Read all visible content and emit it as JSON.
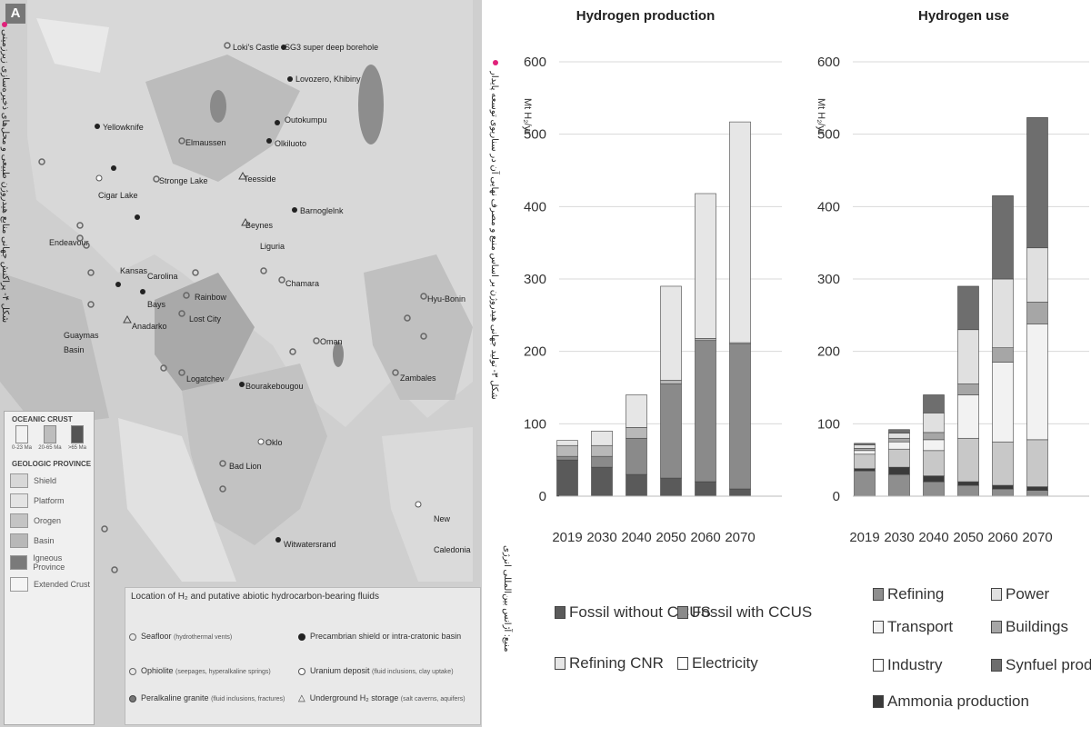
{
  "map": {
    "badge": "A",
    "sites": [
      {
        "label": "Loki's Castle"
      },
      {
        "label": "SG3 super deep borehole"
      },
      {
        "label": "Lovozero, Khibiny"
      },
      {
        "label": "Yellowknife"
      },
      {
        "label": "Outokumpu"
      },
      {
        "label": "Olkiluoto"
      },
      {
        "label": "Elmaussen"
      },
      {
        "label": "Cigar Lake"
      },
      {
        "label": "Stronge Lake"
      },
      {
        "label": "Teesside"
      },
      {
        "label": "Barnoglelnk"
      },
      {
        "label": "Beynes"
      },
      {
        "label": "Liguria"
      },
      {
        "label": "Endeavour"
      },
      {
        "label": "Kansas"
      },
      {
        "label": "Carolina"
      },
      {
        "label": "Bays"
      },
      {
        "label": "Rainbow"
      },
      {
        "label": "Chamara"
      },
      {
        "label": "Lost City"
      },
      {
        "label": "Guaymas"
      },
      {
        "label": "Basin"
      },
      {
        "label": "Anadarko"
      },
      {
        "label": "Oman"
      },
      {
        "label": "Hyu-Bonin"
      },
      {
        "label": "Logatchev"
      },
      {
        "label": "Bourakebougou"
      },
      {
        "label": "Zambales"
      },
      {
        "label": "Oklo"
      },
      {
        "label": "Bad Lion"
      },
      {
        "label": "Witwatersrand"
      },
      {
        "label": "New"
      },
      {
        "label": "Caledonia"
      }
    ],
    "crust_legend": {
      "title": "OCEANIC CRUST",
      "items": [
        {
          "label": "0-23 Ma",
          "color": "#f2f2f2"
        },
        {
          "label": "20-65 Ma",
          "color": "#bdbdbd"
        },
        {
          "label": ">65 Ma",
          "color": "#555555"
        }
      ]
    },
    "province_legend": {
      "title": "GEOLOGIC PROVINCE",
      "items": [
        {
          "label": "Shield",
          "color": "#d8d8d8"
        },
        {
          "label": "Platform",
          "color": "#e4e4e4"
        },
        {
          "label": "Orogen",
          "color": "#c4c4c4"
        },
        {
          "label": "Basin",
          "color": "#b8b8b8"
        },
        {
          "label": "Igneous Province",
          "color": "#7a7a7a"
        },
        {
          "label": "Extended Crust",
          "color": "#f4f4f4"
        }
      ]
    },
    "location_legend": {
      "title": "Location of H₂ and putative abiotic hydrocarbon-bearing fluids",
      "items": [
        {
          "label": "Seafloor",
          "note": "(hydrothermal vents)",
          "marker": "ring-grey"
        },
        {
          "label": "Precambrian shield or intra-cratonic basin",
          "note": "",
          "marker": "filled-black"
        },
        {
          "label": "Ophiolite",
          "note": "(seepages, hyperalkaline springs)",
          "marker": "ring-grey"
        },
        {
          "label": "Uranium deposit",
          "note": "(fluid inclusions, clay uptake)",
          "marker": "ring-white"
        },
        {
          "label": "Peralkaline granite",
          "note": "(fluid inclusions, fractures)",
          "marker": "filled-grey"
        },
        {
          "label": "Underground H₂ storage",
          "note": "(salt caverns, aquifers)",
          "marker": "triangle"
        }
      ]
    },
    "side_caption": "شکل ۴- پراکنش جهانی منابع هیدروژن طبیعی و محل‌های ذخیره‌سازی زیرزمینی"
  },
  "chart_side_caption": "شکل ۳- تولید جهانی هیدروژن بر اساس منبع و مصرف نهایی آن در سناریوی توسعه پایدار",
  "chart_side_note": "منبع: آژانس بین‌المللی انرژی",
  "chart_data": [
    {
      "type": "bar",
      "stacked": true,
      "title": "Hydrogen production",
      "ylabel": "Mt H₂/yr",
      "ylim": [
        0,
        600
      ],
      "yticks": [
        0,
        100,
        200,
        300,
        400,
        500,
        600
      ],
      "categories": [
        "2019",
        "2030",
        "2040",
        "2050",
        "2060",
        "2070"
      ],
      "series": [
        {
          "name": "Fossil without CCUS",
          "color": "#5a5a5a",
          "values": [
            50,
            40,
            30,
            25,
            20,
            10
          ]
        },
        {
          "name": "Fossil with  CCUS",
          "color": "#8a8a8a",
          "values": [
            5,
            15,
            50,
            130,
            195,
            200
          ]
        },
        {
          "name": "Refining CNR",
          "color": "#b8b8b8",
          "values": [
            15,
            15,
            15,
            5,
            3,
            2
          ]
        },
        {
          "name": "Electricity",
          "color": "#e6e6e6",
          "values": [
            7,
            20,
            45,
            130,
            200,
            305
          ]
        }
      ],
      "legend_position": "bottom",
      "grid": true
    },
    {
      "type": "bar",
      "stacked": true,
      "title": "Hydrogen use",
      "ylabel": "Mt H₂/yr",
      "ylim": [
        0,
        600
      ],
      "yticks": [
        0,
        100,
        200,
        300,
        400,
        500,
        600
      ],
      "categories": [
        "2019",
        "2030",
        "2040",
        "2050",
        "2060",
        "2070"
      ],
      "series": [
        {
          "name": "Refining",
          "color": "#8e8e8e",
          "values": [
            35,
            30,
            20,
            15,
            10,
            8
          ]
        },
        {
          "name": "Ammonia production",
          "color": "#3a3a3a",
          "values": [
            3,
            10,
            8,
            5,
            5,
            5
          ]
        },
        {
          "name": "Industry",
          "color": "#c8c8c8",
          "values": [
            20,
            25,
            35,
            60,
            60,
            65
          ]
        },
        {
          "name": "Transport",
          "color": "#f2f2f2",
          "values": [
            5,
            10,
            15,
            60,
            110,
            160
          ]
        },
        {
          "name": "Buildings",
          "color": "#a6a6a6",
          "values": [
            3,
            5,
            10,
            15,
            20,
            30
          ]
        },
        {
          "name": "Power",
          "color": "#e0e0e0",
          "values": [
            5,
            7,
            27,
            75,
            95,
            75
          ]
        },
        {
          "name": "Synfuel production",
          "color": "#6e6e6e",
          "values": [
            2,
            5,
            25,
            60,
            115,
            180
          ]
        }
      ],
      "legend_position": "bottom",
      "grid": true
    }
  ],
  "legend_left": [
    {
      "label": "Fossil without CCUS",
      "color": "#5a5a5a"
    },
    {
      "label": "Fossil with  CCUS",
      "color": "#8a8a8a"
    },
    {
      "label": "Refining CNR",
      "color": "#e6e6e6"
    },
    {
      "label": "Electricity",
      "color": "#ffffff"
    }
  ],
  "legend_right": [
    {
      "label": "Refining",
      "color": "#8e8e8e"
    },
    {
      "label": "Power",
      "color": "#e0e0e0"
    },
    {
      "label": "Transport",
      "color": "#f2f2f2"
    },
    {
      "label": "Buildings",
      "color": "#a6a6a6"
    },
    {
      "label": "Industry",
      "color": "#ffffff"
    },
    {
      "label": "Synfuel production",
      "color": "#6e6e6e"
    },
    {
      "label": "Ammonia production",
      "color": "#3a3a3a"
    }
  ]
}
